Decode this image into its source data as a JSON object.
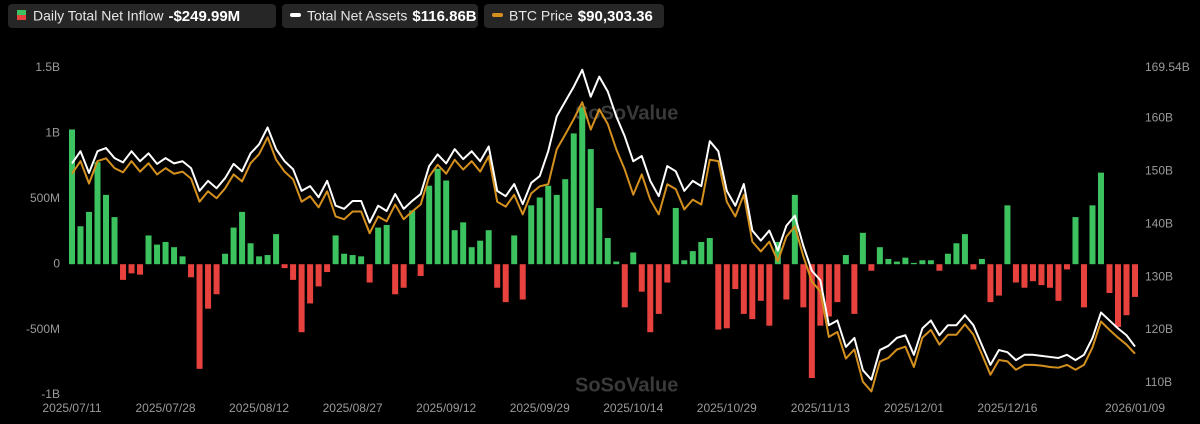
{
  "chart_data": {
    "type": "bar_line",
    "watermark": "SoSoValue",
    "categories": [
      "2025/07/11",
      null,
      null,
      null,
      null,
      null,
      null,
      null,
      null,
      null,
      null,
      "2025/07/28",
      null,
      null,
      null,
      null,
      null,
      null,
      null,
      null,
      null,
      null,
      "2025/08/12",
      null,
      null,
      null,
      null,
      null,
      null,
      null,
      null,
      null,
      null,
      "2025/08/27",
      null,
      null,
      null,
      null,
      null,
      null,
      null,
      null,
      null,
      null,
      "2025/09/12",
      null,
      null,
      null,
      null,
      null,
      null,
      null,
      null,
      null,
      null,
      "2025/09/29",
      null,
      null,
      null,
      null,
      null,
      null,
      null,
      null,
      null,
      null,
      "2025/10/14",
      null,
      null,
      null,
      null,
      null,
      null,
      null,
      null,
      null,
      null,
      "2025/10/29",
      null,
      null,
      null,
      null,
      null,
      null,
      null,
      null,
      null,
      null,
      "2025/11/13",
      null,
      null,
      null,
      null,
      null,
      null,
      null,
      null,
      null,
      null,
      "2025/12/01",
      null,
      null,
      null,
      null,
      null,
      null,
      null,
      null,
      null,
      null,
      "2025/12/16",
      null,
      null,
      null,
      null,
      null,
      null,
      null,
      null,
      null,
      null,
      null,
      null,
      null,
      null,
      "2026/01/09"
    ],
    "ylim": [
      -1000,
      1500
    ],
    "yticks": [
      {
        "value": -1000,
        "label": "-1B"
      },
      {
        "value": -500,
        "label": "-500M"
      },
      0,
      {
        "value": 500,
        "label": "500M"
      },
      {
        "value": 1000,
        "label": "1B"
      },
      {
        "value": 1500,
        "label": "1.5B"
      }
    ],
    "y2lim": [
      107.7,
      169.54
    ],
    "y2ticks": [
      {
        "value": 110,
        "label": "110B"
      },
      {
        "value": 120,
        "label": "120B"
      },
      {
        "value": 130,
        "label": "130B"
      },
      {
        "value": 140,
        "label": "140B"
      },
      {
        "value": 150,
        "label": "150B"
      },
      {
        "value": 160,
        "label": "160B"
      },
      {
        "value": 169.54,
        "label": "169.54B"
      }
    ],
    "y3lim": [
      84400,
      131100
    ],
    "grid": false,
    "series": [
      {
        "name": "Daily Total Net Inflow",
        "legend_value": "-$249.99M",
        "kind": "bar",
        "color": "#3cc25f",
        "negative_color": "#e8423f",
        "values": [
          1030,
          290,
          400,
          780,
          530,
          360,
          -120,
          -70,
          -80,
          220,
          150,
          170,
          130,
          60,
          -100,
          -800,
          -340,
          -230,
          80,
          280,
          400,
          160,
          60,
          70,
          230,
          -30,
          -120,
          -520,
          -300,
          -170,
          -60,
          220,
          80,
          70,
          60,
          -140,
          280,
          300,
          -230,
          -180,
          410,
          -90,
          600,
          730,
          640,
          260,
          320,
          130,
          180,
          260,
          -180,
          -290,
          220,
          -270,
          450,
          510,
          600,
          530,
          650,
          1000,
          1200,
          880,
          430,
          200,
          20,
          -330,
          90,
          -210,
          -520,
          -380,
          -140,
          430,
          30,
          100,
          170,
          200,
          -500,
          -490,
          -190,
          -380,
          -420,
          -280,
          -470,
          170,
          -270,
          530,
          -330,
          -870,
          -470,
          -400,
          -290,
          70,
          -380,
          240,
          -50,
          130,
          40,
          20,
          50,
          10,
          30,
          30,
          -50,
          80,
          160,
          230,
          -40,
          40,
          -290,
          -240,
          450,
          -140,
          -180,
          -130,
          -160,
          -180,
          -280,
          -40,
          360,
          -330,
          450,
          700,
          -220,
          -480,
          -390,
          -249.99
        ]
      },
      {
        "name": "Total Net Assets",
        "legend_value": "$116.86B",
        "kind": "line",
        "axis": "y2",
        "color": "#ffffff",
        "values": [
          151.5,
          153.8,
          149.7,
          153.8,
          154.4,
          152.5,
          151.7,
          153.8,
          151.9,
          153.4,
          151.4,
          152.5,
          151.5,
          151.9,
          150.6,
          146.3,
          148.2,
          146.8,
          148.7,
          151.4,
          150.0,
          153.4,
          155.1,
          158.3,
          154.2,
          151.9,
          150.4,
          146.3,
          147.2,
          145.1,
          148.2,
          143.5,
          142.9,
          144.4,
          144.4,
          140.3,
          143.5,
          142.5,
          145.7,
          142.9,
          144.4,
          145.7,
          151.0,
          153.2,
          151.5,
          154.2,
          152.3,
          153.8,
          151.9,
          154.7,
          146.3,
          145.3,
          147.6,
          143.8,
          147.8,
          149.1,
          153.8,
          160.4,
          163.2,
          166.0,
          169.2,
          164.1,
          167.9,
          165.1,
          160.4,
          156.6,
          151.9,
          152.9,
          148.2,
          145.3,
          151.0,
          150.0,
          146.3,
          148.2,
          147.2,
          155.7,
          153.8,
          146.3,
          143.5,
          147.6,
          138.8,
          136.9,
          138.8,
          135.0,
          139.7,
          141.6,
          135.9,
          131.2,
          129.4,
          120.9,
          121.8,
          116.8,
          118.5,
          112.4,
          110.6,
          116.2,
          117.0,
          118.5,
          119.0,
          115.3,
          120.3,
          121.8,
          119.0,
          120.9,
          120.9,
          122.8,
          120.9,
          117.1,
          113.4,
          116.2,
          115.8,
          114.3,
          115.3,
          115.3,
          115.1,
          114.9,
          114.7,
          115.3,
          114.3,
          115.3,
          118.5,
          123.3,
          121.8,
          120.3,
          119.0,
          116.86
        ]
      },
      {
        "name": "BTC Price",
        "legend_value": "$90,303.36",
        "kind": "line",
        "axis": "y3",
        "color": "#d4901e",
        "values": [
          116000,
          117800,
          114600,
          117800,
          118200,
          116800,
          116200,
          117800,
          116300,
          117500,
          115900,
          116800,
          116000,
          116300,
          115300,
          112000,
          113500,
          112500,
          113900,
          115900,
          114900,
          117500,
          118800,
          121200,
          118000,
          116300,
          115200,
          112000,
          112800,
          111200,
          113500,
          109900,
          109500,
          110600,
          110600,
          107500,
          109900,
          109200,
          111600,
          109500,
          110600,
          111600,
          115600,
          117300,
          116000,
          118000,
          116600,
          117800,
          116300,
          118500,
          112000,
          111300,
          113000,
          110200,
          113200,
          114200,
          114500,
          119500,
          121600,
          123800,
          126200,
          122300,
          125200,
          123100,
          119500,
          116600,
          113000,
          115900,
          112300,
          110200,
          114500,
          113800,
          110900,
          112300,
          111600,
          118000,
          117800,
          112000,
          109900,
          113000,
          106300,
          104900,
          106300,
          103500,
          107000,
          108500,
          104200,
          100600,
          99200,
          92700,
          93400,
          89600,
          90900,
          86300,
          84900,
          89200,
          89700,
          90900,
          91300,
          88400,
          92600,
          93700,
          91600,
          93000,
          93000,
          94500,
          93000,
          90200,
          87300,
          89400,
          89200,
          88000,
          88700,
          88700,
          88600,
          88400,
          88300,
          88700,
          88000,
          88700,
          91200,
          94900,
          93700,
          92600,
          91600,
          90303.36
        ]
      }
    ]
  }
}
